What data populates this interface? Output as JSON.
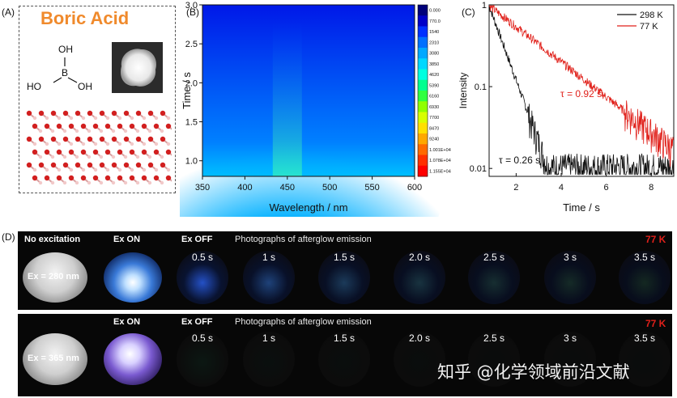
{
  "panel_a": {
    "label": "(A)",
    "title": "Boric Acid",
    "molecule": {
      "oh_top": "OH",
      "b": "B",
      "ho_left": "HO",
      "oh_right": "OH"
    }
  },
  "panel_b": {
    "label": "(B)"
  },
  "panel_c": {
    "label": "(C)"
  },
  "panel_d": {
    "label": "(D)",
    "rows": [
      {
        "no_excitation": "No excitation",
        "ex": "Ex = 280 nm",
        "ex_on": "Ex ON",
        "ex_off": "Ex OFF",
        "caption": "Photographs of afterglow emission",
        "temp": "77 K",
        "times": [
          "0.5 s",
          "1 s",
          "1.5 s",
          "2.0 s",
          "2.5 s",
          "3 s",
          "3.5 s"
        ],
        "glow_levels": [
          0.9,
          0.6,
          0.45,
          0.3,
          0.2,
          0.12,
          0.08
        ]
      },
      {
        "no_excitation": "",
        "ex": "Ex = 365 nm",
        "ex_on": "Ex ON",
        "ex_off": "Ex OFF",
        "caption": "Photographs of afterglow emission",
        "temp": "77 K",
        "times": [
          "0.5 s",
          "1 s",
          "1.5 s",
          "2.0 s",
          "2.5 s",
          "3 s",
          "3.5 s"
        ],
        "glow_levels": [
          0.12,
          0.04,
          0.02,
          0.01,
          0.0,
          0.0,
          0.0
        ]
      }
    ]
  },
  "watermark": "知乎 @化学领域前沿文献",
  "chart_data": [
    {
      "type": "heatmap",
      "xlabel": "Wavelength / nm",
      "ylabel": "Time / s",
      "xlim": [
        350,
        600
      ],
      "ylim": [
        0.8,
        3.0
      ],
      "xticks": [
        "350",
        "400",
        "450",
        "500",
        "550",
        "600"
      ],
      "yticks": [
        "1.0",
        "1.5",
        "2.0",
        "2.5",
        "3.0"
      ],
      "peak_wavelength": 450,
      "colorbar_ticks": [
        "0.000",
        "770.0",
        "1540",
        "2310",
        "3080",
        "3850",
        "4620",
        "5390",
        "6160",
        "6930",
        "7700",
        "8470",
        "9240",
        "1.001E+04",
        "1.078E+04",
        "1.155E+04"
      ],
      "colorbar_colors": [
        "#00007a",
        "#0000c8",
        "#0030ff",
        "#0070ff",
        "#00a8ff",
        "#00d8ff",
        "#00ffe0",
        "#00ff90",
        "#30ff40",
        "#90ff00",
        "#d8ff00",
        "#ffe000",
        "#ffa800",
        "#ff6a00",
        "#ff3000",
        "#ff0000"
      ]
    },
    {
      "type": "line",
      "xlabel": "Time / s",
      "ylabel": "Intensity",
      "xlim": [
        0.8,
        9
      ],
      "ylim": [
        0.008,
        1
      ],
      "yscale": "log",
      "xticks": [
        "2",
        "4",
        "6",
        "8"
      ],
      "yticks": [
        "0.01",
        "0.1",
        "1"
      ],
      "legend_position": "top-right",
      "series": [
        {
          "name": "298 K",
          "color": "#111111",
          "tau": 0.26
        },
        {
          "name": "77 K",
          "color": "#e0201a",
          "tau": 0.92
        }
      ],
      "annotations": [
        "τ = 0.92 s",
        "τ = 0.26 s"
      ]
    }
  ]
}
